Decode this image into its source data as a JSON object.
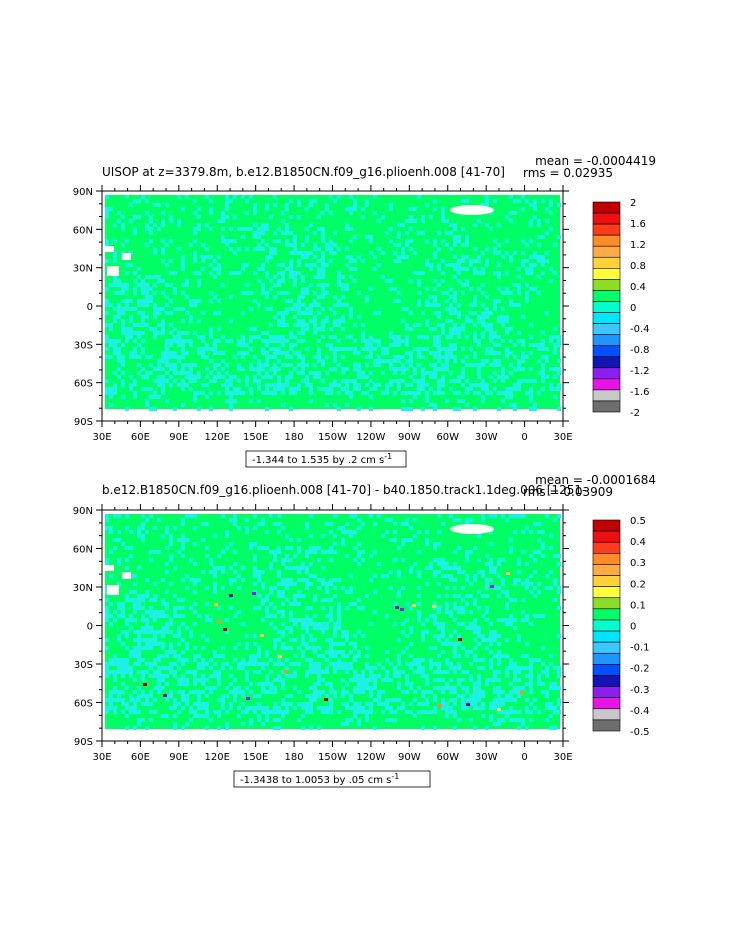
{
  "chart_data": [
    {
      "type": "heatmap",
      "title": "UISOP at z=3379.8m, b.e12.B1850CN.f09_g16.plioenh.008 [41-70]",
      "mean_text": "mean = -0.0004419",
      "rms_text": "rms = 0.02935",
      "range_text": "-1.344 to 1.535 by .2 cm s",
      "range_unit_exp": "-1",
      "x_ticks": [
        "30E",
        "60E",
        "90E",
        "120E",
        "150E",
        "180",
        "150W",
        "120W",
        "90W",
        "60W",
        "30W",
        "0",
        "30E"
      ],
      "y_ticks": [
        "90N",
        "60N",
        "30N",
        "0",
        "30S",
        "60S",
        "90S"
      ],
      "colorbar_levels": [
        2,
        1.6,
        1.2,
        0.8,
        0.4,
        0,
        -0.4,
        -0.8,
        -1.2,
        -1.6,
        -2
      ],
      "colorbar_labels": [
        "2",
        "1.6",
        "1.2",
        "0.8",
        "0.4",
        "0",
        "-0.4",
        "-0.8",
        "-1.2",
        "-1.6",
        "-2"
      ],
      "colorbar_colors": [
        "#c00000",
        "#ee1010",
        "#ff3b1e",
        "#ff8c28",
        "#ffaa44",
        "#ffd23c",
        "#ffff3c",
        "#8cdc28",
        "#00ff66",
        "#00ffcc",
        "#00e6ff",
        "#3cc8ff",
        "#1e96ff",
        "#0050ff",
        "#1414b4",
        "#8c1ef0",
        "#e614e6",
        "#c8c8c8",
        "#6e6e6e"
      ],
      "field_colors": {
        "main": "#00ff64",
        "neg": "#1ef0e6",
        "land": "#ffffff"
      }
    },
    {
      "type": "heatmap",
      "title": "b.e12.B1850CN.f09_g16.plioenh.008 [41-70] - b40.1850.track1.1deg.006 [1251-",
      "mean_text": "mean = -0.0001684",
      "rms_text": "rms = 0.03909",
      "range_text": "-1.3438 to 1.0053 by .05 cm s",
      "range_unit_exp": "-1",
      "x_ticks": [
        "30E",
        "60E",
        "90E",
        "120E",
        "150E",
        "180",
        "150W",
        "120W",
        "90W",
        "60W",
        "30W",
        "0",
        "30E"
      ],
      "y_ticks": [
        "90N",
        "60N",
        "30N",
        "0",
        "30S",
        "60S",
        "90S"
      ],
      "colorbar_levels": [
        0.5,
        0.4,
        0.3,
        0.2,
        0.1,
        0,
        -0.1,
        -0.2,
        -0.3,
        -0.4,
        -0.5
      ],
      "colorbar_labels": [
        "0.5",
        "0.4",
        "0.3",
        "0.2",
        "0.1",
        "0",
        "-0.1",
        "-0.2",
        "-0.3",
        "-0.4",
        "-0.5"
      ],
      "colorbar_colors": [
        "#c00000",
        "#ee1010",
        "#ff3b1e",
        "#ff8c28",
        "#ffaa44",
        "#ffd23c",
        "#ffff3c",
        "#8cdc28",
        "#00ff66",
        "#00ffcc",
        "#00e6ff",
        "#3cc8ff",
        "#1e96ff",
        "#0050ff",
        "#1414b4",
        "#8c1ef0",
        "#e614e6",
        "#c8c8c8",
        "#6e6e6e"
      ],
      "field_colors": {
        "main": "#00ff64",
        "neg": "#1ef0e6",
        "land": "#ffffff"
      }
    }
  ]
}
